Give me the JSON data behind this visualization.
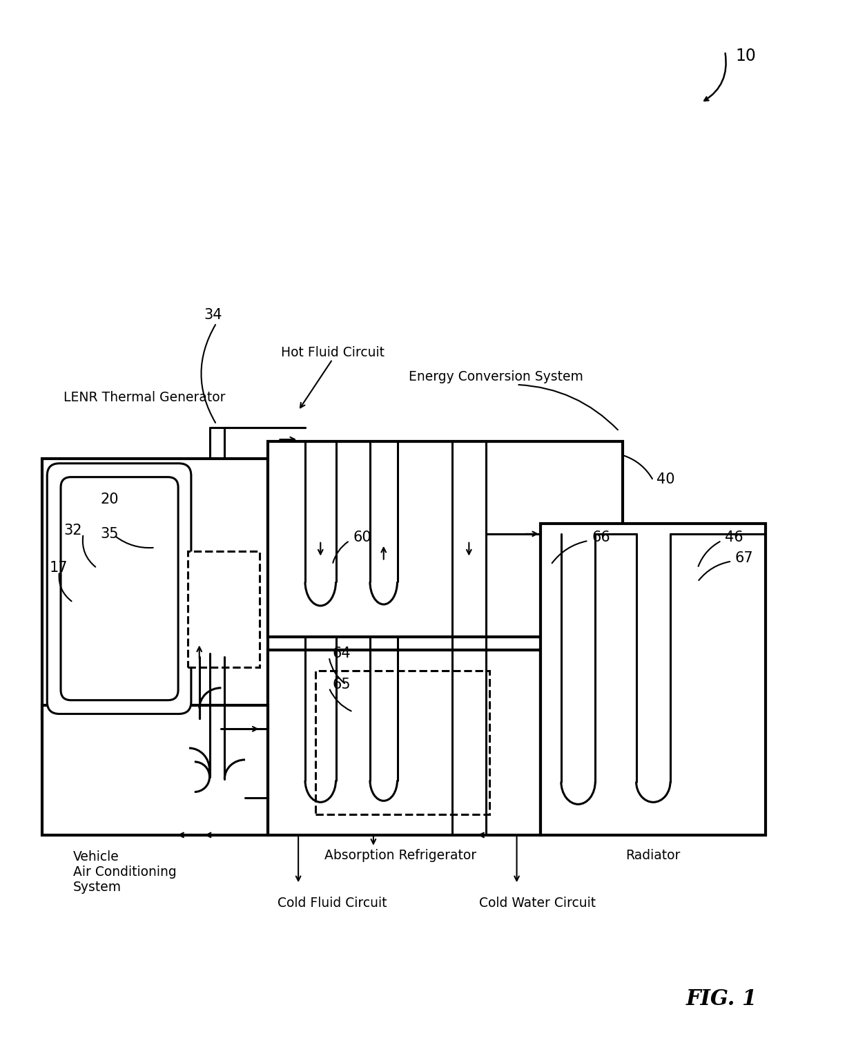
{
  "bg_color": "#ffffff",
  "lc": "#000000",
  "lw_thin": 1.5,
  "lw_mid": 2.2,
  "lw_thick": 3.0,
  "fig_label": "FIG. 1",
  "labels": {
    "hot_fluid": "Hot Fluid Circuit",
    "energy_conv": "Energy Conversion System",
    "lenr": "LENR Thermal Generator",
    "absorption": "Absorption Refrigerator",
    "radiator": "Radiator",
    "vehicle_ac": "Vehicle\nAir Conditioning\nSystem",
    "cold_fluid": "Cold Fluid Circuit",
    "cold_water": "Cold Water Circuit"
  }
}
